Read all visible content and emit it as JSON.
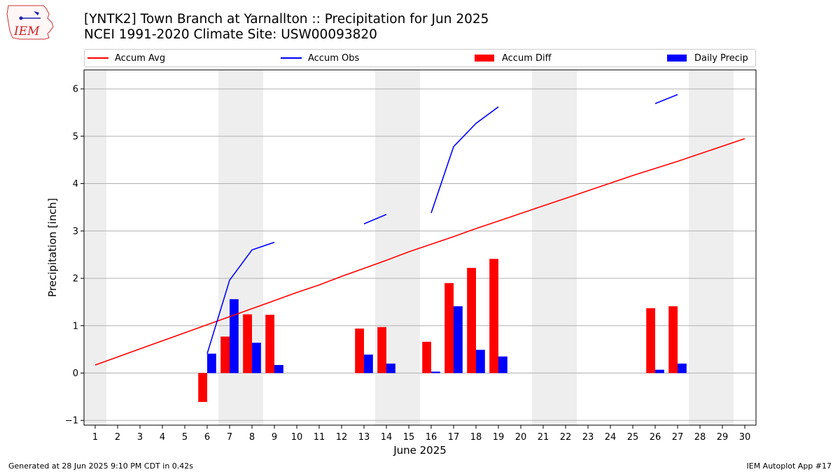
{
  "header": {
    "title": "[YNTK2] Town Branch at Yarnallton :: Precipitation for Jun 2025",
    "subtitle": "NCEI 1991-2020 Climate Site: USW00093820"
  },
  "logo": {
    "text": "IEM",
    "icon": "iowa-state-outline-icon"
  },
  "footer": {
    "left": "Generated at 28 Jun 2025 9:10 PM CDT in 0.42s",
    "right": "IEM Autoplot App #17"
  },
  "colors": {
    "accum_avg": "#ff0000",
    "accum_obs": "#0000ff",
    "accum_diff": "#ff0000",
    "daily_precip": "#0000ff",
    "weekend_shade": "#eeeeee",
    "grid": "#b0b0b0"
  },
  "chart_data": {
    "type": "bar",
    "xlabel": "June 2025",
    "ylabel": "Precipitation [inch]",
    "xlim": [
      0.5,
      30.5
    ],
    "ylim": [
      -1.1,
      6.4
    ],
    "yticks": [
      -1,
      0,
      1,
      2,
      3,
      4,
      5,
      6
    ],
    "x": [
      1,
      2,
      3,
      4,
      5,
      6,
      7,
      8,
      9,
      10,
      11,
      12,
      13,
      14,
      15,
      16,
      17,
      18,
      19,
      20,
      21,
      22,
      23,
      24,
      25,
      26,
      27,
      28,
      29,
      30
    ],
    "weekend_days": [
      1,
      7,
      8,
      14,
      15,
      21,
      22,
      28,
      29
    ],
    "grid": true,
    "legend": {
      "placement": "top",
      "entries": [
        "Accum Avg",
        "Accum Obs",
        "Accum Diff",
        "Daily Precip"
      ]
    },
    "series": [
      {
        "name": "Accum Avg",
        "kind": "line",
        "values": [
          0.17,
          0.34,
          0.51,
          0.68,
          0.85,
          1.02,
          1.19,
          1.36,
          1.53,
          1.7,
          1.86,
          2.04,
          2.21,
          2.38,
          2.56,
          2.72,
          2.88,
          3.05,
          3.21,
          3.37,
          3.53,
          3.69,
          3.85,
          4.01,
          4.17,
          4.32,
          4.47,
          4.63,
          4.79,
          4.95
        ]
      },
      {
        "name": "Accum Obs",
        "kind": "line",
        "values": [
          null,
          null,
          null,
          null,
          null,
          0.41,
          1.96,
          2.6,
          2.76,
          null,
          null,
          null,
          3.15,
          3.35,
          null,
          3.38,
          4.78,
          5.27,
          5.62,
          null,
          null,
          null,
          null,
          null,
          null,
          5.69,
          5.88,
          null,
          null,
          null
        ]
      },
      {
        "name": "Accum Diff",
        "kind": "bar",
        "values": [
          null,
          null,
          null,
          null,
          null,
          -0.61,
          0.77,
          1.24,
          1.23,
          null,
          null,
          null,
          0.94,
          0.97,
          null,
          0.66,
          1.9,
          2.22,
          2.41,
          null,
          null,
          null,
          null,
          null,
          null,
          1.37,
          1.41,
          null,
          null,
          null
        ]
      },
      {
        "name": "Daily Precip",
        "kind": "bar",
        "values": [
          null,
          null,
          null,
          null,
          null,
          0.41,
          1.56,
          0.64,
          0.17,
          null,
          null,
          null,
          0.39,
          0.2,
          null,
          0.03,
          1.41,
          0.49,
          0.35,
          null,
          null,
          null,
          null,
          null,
          null,
          0.07,
          0.2,
          null,
          null,
          null
        ]
      }
    ]
  }
}
